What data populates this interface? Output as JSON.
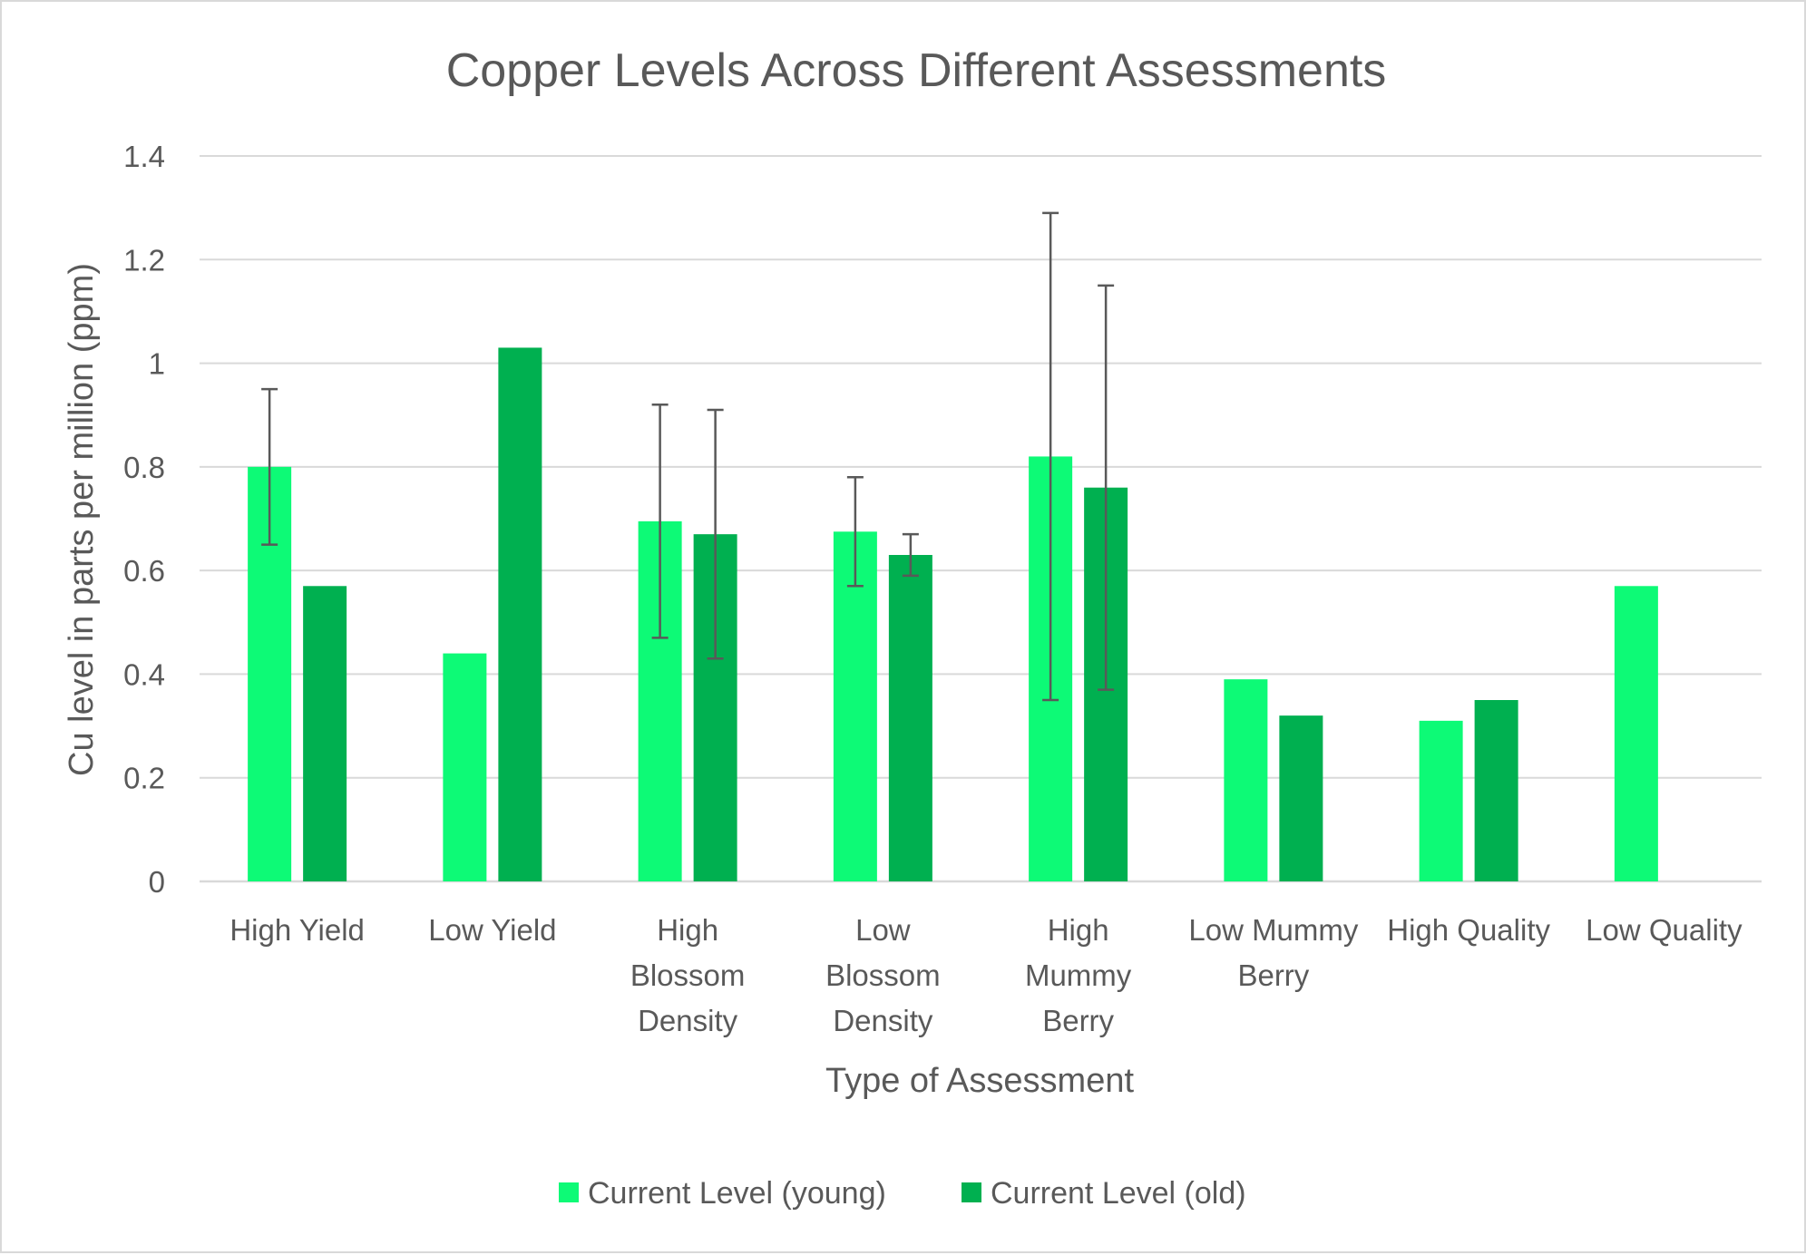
{
  "chart_data": {
    "type": "bar",
    "title": "Copper Levels Across Different Assessments",
    "xlabel": "Type of Assessment",
    "ylabel": "Cu level in parts per million (ppm)",
    "ylim": [
      0,
      1.4
    ],
    "yticks": [
      "0",
      "0.2",
      "0.4",
      "0.6",
      "0.8",
      "1",
      "1.2",
      "1.4"
    ],
    "grid": true,
    "legend_position": "bottom",
    "categories": [
      [
        "High Yield"
      ],
      [
        "Low Yield"
      ],
      [
        "High",
        "Blossom",
        "Density"
      ],
      [
        "Low",
        "Blossom",
        "Density"
      ],
      [
        "High",
        "Mummy",
        "Berry"
      ],
      [
        "Low Mummy",
        "Berry"
      ],
      [
        "High Quality"
      ],
      [
        "Low Quality"
      ]
    ],
    "series": [
      {
        "name": "Current Level (young)",
        "color": "#0dfa76",
        "values": [
          0.8,
          0.44,
          0.695,
          0.675,
          0.82,
          0.39,
          0.31,
          0.57
        ],
        "error_low": [
          0.65,
          null,
          0.47,
          0.57,
          0.35,
          null,
          null,
          null
        ],
        "error_high": [
          0.95,
          null,
          0.92,
          0.78,
          1.29,
          null,
          null,
          null
        ]
      },
      {
        "name": "Current Level (old)",
        "color": "#00b050",
        "values": [
          0.57,
          1.03,
          0.67,
          0.63,
          0.76,
          0.32,
          0.35,
          null
        ],
        "error_low": [
          null,
          null,
          0.43,
          0.59,
          0.37,
          null,
          null,
          null
        ],
        "error_high": [
          null,
          null,
          0.91,
          0.67,
          1.15,
          null,
          null,
          null
        ]
      }
    ]
  }
}
